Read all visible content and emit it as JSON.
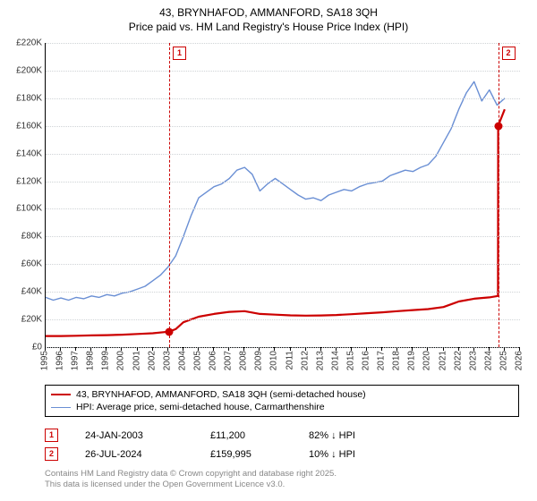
{
  "title": {
    "line1": "43, BRYNHAFOD, AMMANFORD, SA18 3QH",
    "line2": "Price paid vs. HM Land Registry's House Price Index (HPI)"
  },
  "chart": {
    "type": "line",
    "x_domain": [
      1995,
      2026
    ],
    "y_domain": [
      0,
      220000
    ],
    "y_ticks": [
      0,
      20000,
      40000,
      60000,
      80000,
      100000,
      120000,
      140000,
      160000,
      180000,
      200000,
      220000
    ],
    "y_tick_labels": [
      "£0",
      "£20K",
      "£40K",
      "£60K",
      "£80K",
      "£100K",
      "£120K",
      "£140K",
      "£160K",
      "£180K",
      "£200K",
      "£220K"
    ],
    "x_ticks": [
      1995,
      1996,
      1997,
      1998,
      1999,
      2000,
      2001,
      2002,
      2003,
      2004,
      2005,
      2006,
      2007,
      2008,
      2009,
      2010,
      2011,
      2012,
      2013,
      2014,
      2015,
      2016,
      2017,
      2018,
      2019,
      2020,
      2021,
      2022,
      2023,
      2024,
      2025,
      2026
    ],
    "grid_color": "#cfd3d6",
    "background": "#ffffff",
    "axis_font_size": 10,
    "series": [
      {
        "name": "price_paid",
        "label": "43, BRYNHAFOD, AMMANFORD, SA18 3QH (semi-detached house)",
        "color": "#cc0000",
        "line_width": 2.2,
        "data": [
          [
            1995,
            8000
          ],
          [
            1996,
            8000
          ],
          [
            1997,
            8200
          ],
          [
            1998,
            8500
          ],
          [
            1999,
            8700
          ],
          [
            2000,
            9000
          ],
          [
            2001,
            9500
          ],
          [
            2002,
            10000
          ],
          [
            2003.07,
            11200
          ],
          [
            2003.5,
            13000
          ],
          [
            2004,
            18000
          ],
          [
            2005,
            22000
          ],
          [
            2006,
            24000
          ],
          [
            2007,
            25500
          ],
          [
            2008,
            26000
          ],
          [
            2009,
            24000
          ],
          [
            2010,
            23500
          ],
          [
            2011,
            23000
          ],
          [
            2012,
            22800
          ],
          [
            2013,
            22900
          ],
          [
            2014,
            23200
          ],
          [
            2015,
            23800
          ],
          [
            2016,
            24500
          ],
          [
            2017,
            25200
          ],
          [
            2018,
            26000
          ],
          [
            2019,
            26800
          ],
          [
            2020,
            27500
          ],
          [
            2021,
            29000
          ],
          [
            2022,
            33000
          ],
          [
            2023,
            35000
          ],
          [
            2024,
            36000
          ],
          [
            2024.56,
            37000
          ],
          [
            2024.57,
            159995
          ],
          [
            2025,
            172000
          ]
        ]
      },
      {
        "name": "hpi",
        "label": "HPI: Average price, semi-detached house, Carmarthenshire",
        "color": "#6a8fd4",
        "line_width": 1.4,
        "data": [
          [
            1995,
            36000
          ],
          [
            1995.5,
            34000
          ],
          [
            1996,
            35500
          ],
          [
            1996.5,
            34000
          ],
          [
            1997,
            36000
          ],
          [
            1997.5,
            35000
          ],
          [
            1998,
            37000
          ],
          [
            1998.5,
            36000
          ],
          [
            1999,
            38000
          ],
          [
            1999.5,
            37000
          ],
          [
            2000,
            39000
          ],
          [
            2000.5,
            40000
          ],
          [
            2001,
            42000
          ],
          [
            2001.5,
            44000
          ],
          [
            2002,
            48000
          ],
          [
            2002.5,
            52000
          ],
          [
            2003,
            58000
          ],
          [
            2003.5,
            66000
          ],
          [
            2004,
            80000
          ],
          [
            2004.5,
            95000
          ],
          [
            2005,
            108000
          ],
          [
            2005.5,
            112000
          ],
          [
            2006,
            116000
          ],
          [
            2006.5,
            118000
          ],
          [
            2007,
            122000
          ],
          [
            2007.5,
            128000
          ],
          [
            2008,
            130000
          ],
          [
            2008.5,
            125000
          ],
          [
            2009,
            113000
          ],
          [
            2009.5,
            118000
          ],
          [
            2010,
            122000
          ],
          [
            2010.5,
            118000
          ],
          [
            2011,
            114000
          ],
          [
            2011.5,
            110000
          ],
          [
            2012,
            107000
          ],
          [
            2012.5,
            108000
          ],
          [
            2013,
            106000
          ],
          [
            2013.5,
            110000
          ],
          [
            2014,
            112000
          ],
          [
            2014.5,
            114000
          ],
          [
            2015,
            113000
          ],
          [
            2015.5,
            116000
          ],
          [
            2016,
            118000
          ],
          [
            2016.5,
            119000
          ],
          [
            2017,
            120000
          ],
          [
            2017.5,
            124000
          ],
          [
            2018,
            126000
          ],
          [
            2018.5,
            128000
          ],
          [
            2019,
            127000
          ],
          [
            2019.5,
            130000
          ],
          [
            2020,
            132000
          ],
          [
            2020.5,
            138000
          ],
          [
            2021,
            148000
          ],
          [
            2021.5,
            158000
          ],
          [
            2022,
            172000
          ],
          [
            2022.5,
            184000
          ],
          [
            2023,
            192000
          ],
          [
            2023.5,
            178000
          ],
          [
            2024,
            186000
          ],
          [
            2024.5,
            175000
          ],
          [
            2025,
            180000
          ]
        ]
      }
    ],
    "markers": [
      {
        "id": "1",
        "x": 2003.07,
        "y": 11200,
        "line_color": "#cc0000",
        "box_top": true
      },
      {
        "id": "2",
        "x": 2024.57,
        "y": 159995,
        "line_color": "#cc0000",
        "box_top": true
      }
    ]
  },
  "legend": {
    "items": [
      {
        "color": "#cc0000",
        "width": 2.2,
        "label_path": "chart.series.0.label"
      },
      {
        "color": "#6a8fd4",
        "width": 1.4,
        "label_path": "chart.series.1.label"
      }
    ]
  },
  "sales": [
    {
      "id": "1",
      "date": "24-JAN-2003",
      "price": "£11,200",
      "delta": "82% ↓ HPI",
      "marker_color": "#cc0000"
    },
    {
      "id": "2",
      "date": "26-JUL-2024",
      "price": "£159,995",
      "delta": "10% ↓ HPI",
      "marker_color": "#cc0000"
    }
  ],
  "footer": {
    "line1": "Contains HM Land Registry data © Crown copyright and database right 2025.",
    "line2": "This data is licensed under the Open Government Licence v3.0."
  }
}
